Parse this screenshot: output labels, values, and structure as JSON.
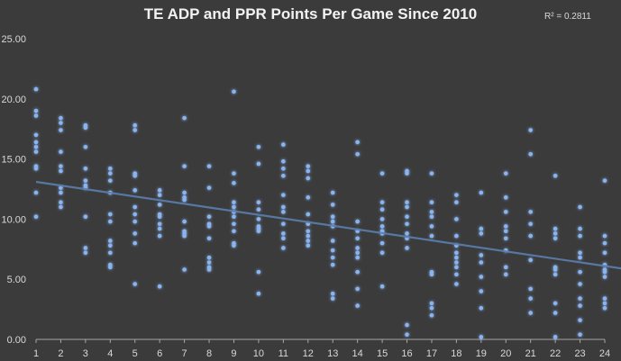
{
  "chart_data": {
    "type": "scatter",
    "title": "TE ADP and PPR Points Per Game Since 2010",
    "annotation": "R² = 0.2811",
    "xlabel": "",
    "ylabel": "",
    "xlim": [
      1,
      24
    ],
    "ylim": [
      0,
      25
    ],
    "x_ticks": [
      "1",
      "2",
      "3",
      "4",
      "5",
      "6",
      "7",
      "8",
      "9",
      "10",
      "11",
      "12",
      "13",
      "14",
      "15",
      "16",
      "17",
      "18",
      "19",
      "20",
      "21",
      "22",
      "23",
      "24"
    ],
    "y_ticks": [
      "0.00",
      "5.00",
      "10.00",
      "15.00",
      "20.00",
      "25.00"
    ],
    "grid": false,
    "colors": {
      "background": "#3b3b3b",
      "point": "#8ab4f0",
      "trendline": "#5b7fae",
      "text": "#d9d9d9",
      "axis": "#a6a6a6"
    },
    "trendline": {
      "type": "linear",
      "x": [
        1,
        24
      ],
      "y": [
        13.1,
        6.1
      ]
    },
    "series": [
      {
        "points": [
          [
            1,
            20.8
          ],
          [
            1,
            19.0
          ],
          [
            1,
            18.6
          ],
          [
            1,
            17.0
          ],
          [
            1,
            16.4
          ],
          [
            1,
            16.0
          ],
          [
            1,
            15.6
          ],
          [
            1,
            14.4
          ],
          [
            1,
            14.2
          ],
          [
            1,
            12.2
          ],
          [
            1,
            10.2
          ],
          [
            2,
            18.4
          ],
          [
            2,
            18.0
          ],
          [
            2,
            17.4
          ],
          [
            2,
            15.6
          ],
          [
            2,
            14.4
          ],
          [
            2,
            14.0
          ],
          [
            2,
            12.6
          ],
          [
            2,
            12.2
          ],
          [
            2,
            11.4
          ],
          [
            2,
            11.0
          ],
          [
            3,
            17.8
          ],
          [
            3,
            17.6
          ],
          [
            3,
            16.0
          ],
          [
            3,
            14.2
          ],
          [
            3,
            13.2
          ],
          [
            3,
            12.8
          ],
          [
            3,
            12.6
          ],
          [
            3,
            10.2
          ],
          [
            3,
            7.6
          ],
          [
            3,
            7.2
          ],
          [
            4,
            14.2
          ],
          [
            4,
            13.8
          ],
          [
            4,
            13.2
          ],
          [
            4,
            12.2
          ],
          [
            4,
            10.4
          ],
          [
            4,
            9.8
          ],
          [
            4,
            8.2
          ],
          [
            4,
            7.8
          ],
          [
            4,
            7.2
          ],
          [
            4,
            6.2
          ],
          [
            4,
            6.0
          ],
          [
            5,
            17.8
          ],
          [
            5,
            17.4
          ],
          [
            5,
            13.8
          ],
          [
            5,
            13.6
          ],
          [
            5,
            12.4
          ],
          [
            5,
            11.0
          ],
          [
            5,
            10.4
          ],
          [
            5,
            9.8
          ],
          [
            5,
            8.8
          ],
          [
            5,
            8.0
          ],
          [
            5,
            4.6
          ],
          [
            6,
            12.4
          ],
          [
            6,
            12.0
          ],
          [
            6,
            11.2
          ],
          [
            6,
            10.4
          ],
          [
            6,
            10.2
          ],
          [
            6,
            9.6
          ],
          [
            6,
            9.2
          ],
          [
            6,
            8.6
          ],
          [
            6,
            4.4
          ],
          [
            7,
            18.4
          ],
          [
            7,
            14.4
          ],
          [
            7,
            12.2
          ],
          [
            7,
            11.8
          ],
          [
            7,
            11.6
          ],
          [
            7,
            9.8
          ],
          [
            7,
            9.0
          ],
          [
            7,
            8.8
          ],
          [
            7,
            8.6
          ],
          [
            7,
            5.8
          ],
          [
            8,
            14.4
          ],
          [
            8,
            12.6
          ],
          [
            8,
            10.2
          ],
          [
            8,
            9.6
          ],
          [
            8,
            9.4
          ],
          [
            8,
            8.4
          ],
          [
            8,
            6.8
          ],
          [
            8,
            6.4
          ],
          [
            8,
            6.0
          ],
          [
            8,
            5.8
          ],
          [
            9,
            20.6
          ],
          [
            9,
            13.8
          ],
          [
            9,
            13.0
          ],
          [
            9,
            11.4
          ],
          [
            9,
            11.0
          ],
          [
            9,
            10.6
          ],
          [
            9,
            10.2
          ],
          [
            9,
            9.6
          ],
          [
            9,
            9.0
          ],
          [
            9,
            8.0
          ],
          [
            9,
            7.8
          ],
          [
            10,
            16.0
          ],
          [
            10,
            14.6
          ],
          [
            10,
            11.4
          ],
          [
            10,
            10.8
          ],
          [
            10,
            10.0
          ],
          [
            10,
            9.4
          ],
          [
            10,
            9.2
          ],
          [
            10,
            9.0
          ],
          [
            10,
            5.6
          ],
          [
            10,
            3.8
          ],
          [
            11,
            16.2
          ],
          [
            11,
            14.8
          ],
          [
            11,
            14.2
          ],
          [
            11,
            13.6
          ],
          [
            11,
            12.0
          ],
          [
            11,
            11.0
          ],
          [
            11,
            10.6
          ],
          [
            11,
            9.6
          ],
          [
            11,
            8.8
          ],
          [
            11,
            8.4
          ],
          [
            11,
            7.6
          ],
          [
            12,
            14.4
          ],
          [
            12,
            14.0
          ],
          [
            12,
            13.4
          ],
          [
            12,
            11.8
          ],
          [
            12,
            10.4
          ],
          [
            12,
            9.6
          ],
          [
            12,
            9.0
          ],
          [
            12,
            8.6
          ],
          [
            12,
            8.2
          ],
          [
            12,
            7.8
          ],
          [
            13,
            12.2
          ],
          [
            13,
            11.2
          ],
          [
            13,
            10.2
          ],
          [
            13,
            9.8
          ],
          [
            13,
            9.4
          ],
          [
            13,
            8.2
          ],
          [
            13,
            7.4
          ],
          [
            13,
            6.8
          ],
          [
            13,
            6.2
          ],
          [
            13,
            3.8
          ],
          [
            13,
            3.4
          ],
          [
            14,
            16.4
          ],
          [
            14,
            15.4
          ],
          [
            14,
            9.8
          ],
          [
            14,
            9.0
          ],
          [
            14,
            8.4
          ],
          [
            14,
            7.6
          ],
          [
            14,
            7.2
          ],
          [
            14,
            6.8
          ],
          [
            14,
            5.6
          ],
          [
            14,
            4.2
          ],
          [
            14,
            2.8
          ],
          [
            15,
            13.8
          ],
          [
            15,
            11.4
          ],
          [
            15,
            10.8
          ],
          [
            15,
            10.0
          ],
          [
            15,
            9.4
          ],
          [
            15,
            9.0
          ],
          [
            15,
            8.8
          ],
          [
            15,
            8.0
          ],
          [
            15,
            7.2
          ],
          [
            15,
            4.4
          ],
          [
            16,
            14.0
          ],
          [
            16,
            13.8
          ],
          [
            16,
            11.4
          ],
          [
            16,
            11.0
          ],
          [
            16,
            10.2
          ],
          [
            16,
            9.6
          ],
          [
            16,
            8.8
          ],
          [
            16,
            8.4
          ],
          [
            16,
            7.6
          ],
          [
            16,
            1.2
          ],
          [
            16,
            0.4
          ],
          [
            17,
            13.8
          ],
          [
            17,
            11.4
          ],
          [
            17,
            10.6
          ],
          [
            17,
            10.2
          ],
          [
            17,
            9.4
          ],
          [
            17,
            8.6
          ],
          [
            17,
            5.6
          ],
          [
            17,
            5.4
          ],
          [
            17,
            3.0
          ],
          [
            17,
            2.6
          ],
          [
            17,
            2.0
          ],
          [
            18,
            12.0
          ],
          [
            18,
            11.4
          ],
          [
            18,
            10.0
          ],
          [
            18,
            8.6
          ],
          [
            18,
            7.8
          ],
          [
            18,
            7.2
          ],
          [
            18,
            6.8
          ],
          [
            18,
            6.4
          ],
          [
            18,
            6.0
          ],
          [
            18,
            5.4
          ],
          [
            18,
            4.6
          ],
          [
            19,
            12.2
          ],
          [
            19,
            9.2
          ],
          [
            19,
            8.8
          ],
          [
            19,
            7.0
          ],
          [
            19,
            6.4
          ],
          [
            19,
            5.2
          ],
          [
            19,
            4.0
          ],
          [
            19,
            2.6
          ],
          [
            19,
            0.2
          ],
          [
            20,
            13.8
          ],
          [
            20,
            11.8
          ],
          [
            20,
            10.6
          ],
          [
            20,
            9.4
          ],
          [
            20,
            9.0
          ],
          [
            20,
            8.4
          ],
          [
            20,
            7.4
          ],
          [
            20,
            6.0
          ],
          [
            20,
            5.4
          ],
          [
            21,
            17.4
          ],
          [
            21,
            15.4
          ],
          [
            21,
            10.6
          ],
          [
            21,
            9.6
          ],
          [
            21,
            8.6
          ],
          [
            21,
            6.6
          ],
          [
            21,
            4.2
          ],
          [
            21,
            3.4
          ],
          [
            21,
            2.2
          ],
          [
            22,
            13.6
          ],
          [
            22,
            9.2
          ],
          [
            22,
            8.8
          ],
          [
            22,
            8.4
          ],
          [
            22,
            6.0
          ],
          [
            22,
            5.8
          ],
          [
            22,
            5.4
          ],
          [
            22,
            3.0
          ],
          [
            22,
            2.2
          ],
          [
            22,
            0.2
          ],
          [
            23,
            11.0
          ],
          [
            23,
            9.2
          ],
          [
            23,
            8.6
          ],
          [
            23,
            7.2
          ],
          [
            23,
            6.8
          ],
          [
            23,
            5.6
          ],
          [
            23,
            4.6
          ],
          [
            23,
            3.4
          ],
          [
            23,
            2.8
          ],
          [
            23,
            1.6
          ],
          [
            23,
            0.4
          ],
          [
            24,
            13.2
          ],
          [
            24,
            8.6
          ],
          [
            24,
            8.0
          ],
          [
            24,
            7.2
          ],
          [
            24,
            6.2
          ],
          [
            24,
            5.8
          ],
          [
            24,
            5.6
          ],
          [
            24,
            5.2
          ],
          [
            24,
            3.4
          ],
          [
            24,
            3.0
          ],
          [
            24,
            2.6
          ]
        ]
      }
    ]
  }
}
